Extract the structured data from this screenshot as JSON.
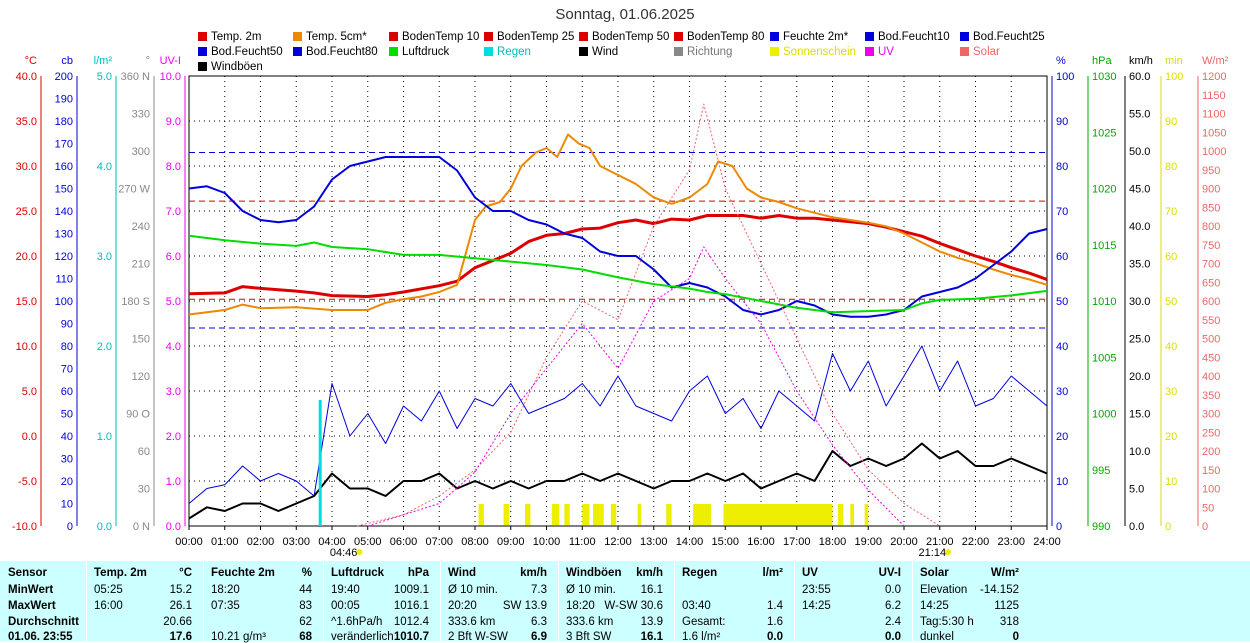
{
  "chart_data": {
    "type": "line",
    "title": "Sonntag, 01.06.2025",
    "x_ticks": [
      "00:00",
      "01:00",
      "02:00",
      "03:00",
      "04:00",
      "05:00",
      "06:00",
      "07:00",
      "08:00",
      "09:00",
      "10:00",
      "11:00",
      "12:00",
      "13:00",
      "14:00",
      "15:00",
      "16:00",
      "17:00",
      "18:00",
      "19:00",
      "20:00",
      "21:00",
      "22:00",
      "23:00",
      "24:00"
    ],
    "sunrise": "04:46",
    "sunset": "21:14",
    "legend": [
      {
        "name": "Temp. 2m",
        "color": "#dd0000"
      },
      {
        "name": "Temp. 5cm*",
        "color": "#ee8800"
      },
      {
        "name": "BodenTemp 10",
        "color": "#dd0000"
      },
      {
        "name": "BodenTemp 25",
        "color": "#dd0000"
      },
      {
        "name": "BodenTemp 50",
        "color": "#dd0000"
      },
      {
        "name": "BodenTemp 80",
        "color": "#dd0000"
      },
      {
        "name": "Feuchte 2m*",
        "color": "#0000dd"
      },
      {
        "name": "Bod.Feucht10",
        "color": "#0000dd"
      },
      {
        "name": "Bod.Feucht25",
        "color": "#0000dd"
      },
      {
        "name": "Bod.Feucht50",
        "color": "#0000dd"
      },
      {
        "name": "Bod.Feucht80",
        "color": "#0000dd"
      },
      {
        "name": "Luftdruck",
        "color": "#00dd00"
      },
      {
        "name": "Regen",
        "color": "#00dddd"
      },
      {
        "name": "Wind",
        "color": "#000000"
      },
      {
        "name": "Richtung",
        "color": "#888888"
      },
      {
        "name": "Sonnenschein",
        "color": "#eeee00"
      },
      {
        "name": "UV",
        "color": "#ee00ee"
      },
      {
        "name": "Solar",
        "color": "#ee6666"
      },
      {
        "name": "Windböen",
        "color": "#000000"
      }
    ],
    "left_axes": [
      {
        "unit": "°C",
        "color": "#dd0000",
        "ticks": [
          "40.0",
          "35.0",
          "30.0",
          "25.0",
          "20.0",
          "15.0",
          "10.0",
          "5.0",
          "0.0",
          "-5.0",
          "-10.0"
        ]
      },
      {
        "unit": "cb",
        "color": "#0000dd",
        "ticks": [
          "200",
          "190",
          "180",
          "170",
          "160",
          "150",
          "140",
          "130",
          "120",
          "110",
          "100",
          "90",
          "80",
          "70",
          "60",
          "50",
          "40",
          "30",
          "20",
          "10",
          "0"
        ]
      },
      {
        "unit": "l/m²",
        "color": "#00bbbb",
        "ticks": [
          "5.0",
          "4.0",
          "3.0",
          "2.0",
          "1.0",
          "0.0"
        ]
      },
      {
        "unit": "°",
        "color": "#888888",
        "ticks": [
          "360 N",
          "330",
          "300",
          "270 W",
          "240",
          "210",
          "180 S",
          "150",
          "120",
          "90 O",
          "60",
          "30",
          "0 N"
        ]
      },
      {
        "unit": "UV-I",
        "color": "#ee00ee",
        "ticks": [
          "10.0",
          "9.0",
          "8.0",
          "7.0",
          "6.0",
          "5.0",
          "4.0",
          "3.0",
          "2.0",
          "1.0",
          "0.0"
        ]
      }
    ],
    "right_axes": [
      {
        "unit": "%",
        "color": "#0000dd",
        "ticks": [
          "100",
          "90",
          "80",
          "70",
          "60",
          "50",
          "40",
          "30",
          "20",
          "10",
          "0"
        ]
      },
      {
        "unit": "hPa",
        "color": "#00aa00",
        "ticks": [
          "1030",
          "1025",
          "1020",
          "1015",
          "1010",
          "1005",
          "1000",
          "995",
          "990"
        ]
      },
      {
        "unit": "km/h",
        "color": "#000000",
        "ticks": [
          "60.0",
          "55.0",
          "50.0",
          "45.0",
          "40.0",
          "35.0",
          "30.0",
          "25.0",
          "20.0",
          "15.0",
          "10.0",
          "5.0",
          "0.0"
        ]
      },
      {
        "unit": "min",
        "color": "#dddd00",
        "ticks": [
          "100",
          "90",
          "80",
          "70",
          "60",
          "50",
          "40",
          "30",
          "20",
          "10",
          "0"
        ]
      },
      {
        "unit": "W/m²",
        "color": "#ee6666",
        "ticks": [
          "1200",
          "1150",
          "1100",
          "1050",
          "1000",
          "950",
          "900",
          "850",
          "800",
          "750",
          "700",
          "650",
          "600",
          "550",
          "500",
          "450",
          "400",
          "350",
          "300",
          "250",
          "200",
          "150",
          "100",
          "50",
          "0"
        ]
      }
    ],
    "series": [
      {
        "name": "Temp. 2m",
        "color": "#dd0000",
        "axis": "°C",
        "x": [
          0,
          1,
          1.5,
          2,
          3,
          3.5,
          4,
          5,
          5.5,
          6,
          7,
          7.5,
          8,
          8.5,
          9,
          9.5,
          10,
          10.5,
          11,
          11.5,
          12,
          12.5,
          13,
          13.5,
          14,
          14.5,
          15,
          15.5,
          16,
          16.5,
          17,
          17.5,
          18,
          18.5,
          19,
          19.5,
          20,
          20.5,
          21,
          21.5,
          22,
          22.5,
          23,
          23.5,
          24
        ],
        "y": [
          15.8,
          15.9,
          16.6,
          16.4,
          16.1,
          15.9,
          15.6,
          15.5,
          15.7,
          16.0,
          16.7,
          17.2,
          18.7,
          19.5,
          20.3,
          21.6,
          22.3,
          22.5,
          23.0,
          23.1,
          23.7,
          24.0,
          23.6,
          24.1,
          24.0,
          24.5,
          24.5,
          24.5,
          24.2,
          24.5,
          24.2,
          24.2,
          24.0,
          23.8,
          23.6,
          23.2,
          22.7,
          22.2,
          21.4,
          20.7,
          20.0,
          19.4,
          18.7,
          18.1,
          17.4
        ]
      },
      {
        "name": "Temp. 5cm*",
        "color": "#ee8800",
        "axis": "°C",
        "x": [
          0,
          1,
          1.5,
          2,
          3,
          4,
          5,
          5.5,
          6,
          6.5,
          7,
          7.5,
          8,
          8.3,
          8.7,
          9,
          9.3,
          9.7,
          10,
          10.3,
          10.6,
          10.9,
          11.2,
          11.5,
          12,
          12.5,
          13,
          13.5,
          14,
          14.5,
          14.8,
          15.2,
          15.6,
          16,
          16.5,
          17,
          17.5,
          18,
          18.5,
          19,
          19.5,
          20,
          20.5,
          21,
          21.5,
          22,
          22.5,
          23,
          23.5,
          24
        ],
        "y": [
          13.5,
          14.0,
          14.6,
          14.2,
          14.3,
          14.0,
          14.0,
          14.8,
          15.2,
          15.5,
          16.0,
          16.8,
          24.0,
          25.5,
          26.0,
          27.5,
          30.0,
          31.5,
          32.0,
          31.0,
          33.5,
          32.5,
          32.0,
          30.0,
          29.0,
          28.0,
          26.5,
          25.8,
          26.5,
          28.0,
          30.5,
          30.0,
          27.5,
          26.5,
          26.0,
          25.3,
          24.8,
          24.3,
          24.0,
          23.7,
          23.3,
          22.5,
          21.5,
          20.5,
          19.8,
          19.2,
          18.5,
          17.9,
          17.4,
          16.8
        ]
      },
      {
        "name": "Feuchte 2m*",
        "color": "#0000dd",
        "axis": "%",
        "x": [
          0,
          0.5,
          1,
          1.5,
          2,
          2.5,
          3,
          3.5,
          4,
          4.5,
          5,
          5.5,
          6,
          7,
          7.5,
          8,
          8.5,
          9,
          9.5,
          10,
          10.5,
          11,
          11.5,
          12,
          12.5,
          13,
          13.5,
          14,
          14.5,
          15,
          15.5,
          16,
          16.5,
          17,
          17.5,
          18,
          18.5,
          19,
          19.5,
          20,
          20.5,
          21,
          21.5,
          22,
          22.5,
          23,
          23.5,
          24
        ],
        "y": [
          75,
          75.5,
          74,
          70,
          68,
          67.5,
          68,
          71,
          77,
          80,
          81,
          82,
          82,
          82,
          79,
          73,
          70,
          70,
          68,
          67,
          65,
          64,
          61,
          60,
          60,
          57,
          53,
          54,
          53,
          51,
          48,
          47,
          48,
          50,
          49,
          47,
          46.5,
          46.5,
          47,
          48,
          51,
          52,
          53,
          55,
          58,
          61,
          65,
          66
        ]
      },
      {
        "name": "Luftdruck",
        "color": "#00dd00",
        "axis": "hPa",
        "x": [
          0,
          1,
          2,
          3,
          3.5,
          4,
          5,
          6,
          7,
          8,
          9,
          10,
          11,
          12,
          13,
          14,
          14.5,
          15,
          16,
          17,
          18,
          19,
          20,
          20.5,
          21,
          22,
          23,
          24
        ],
        "y": [
          1015.8,
          1015.4,
          1015.1,
          1014.9,
          1015.2,
          1014.8,
          1014.6,
          1014.1,
          1014.1,
          1013.8,
          1013.5,
          1013.2,
          1012.8,
          1012.1,
          1011.5,
          1011.1,
          1010.8,
          1010.6,
          1010.0,
          1009.4,
          1009.0,
          1009.1,
          1009.2,
          1009.8,
          1010.1,
          1010.2,
          1010.5,
          1010.9
        ]
      },
      {
        "name": "Windböen",
        "color": "#0000dd",
        "axis": "km/h",
        "x": [
          0,
          0.5,
          1,
          1.5,
          2,
          2.5,
          3,
          3.5,
          4,
          4.5,
          5,
          5.5,
          6,
          6.5,
          7,
          7.5,
          8,
          8.5,
          9,
          9.5,
          10,
          10.5,
          11,
          11.5,
          12,
          12.5,
          13,
          13.5,
          14,
          14.5,
          15,
          15.5,
          16,
          16.5,
          17,
          17.5,
          18,
          18.5,
          19,
          19.5,
          20,
          20.5,
          21,
          21.5,
          22,
          22.5,
          23,
          23.5,
          24
        ],
        "y": [
          3,
          5,
          5.5,
          8,
          6,
          7,
          6,
          4,
          19,
          12,
          15,
          11,
          16,
          14,
          18,
          13,
          17,
          16,
          19,
          15,
          16,
          17,
          19,
          16,
          20,
          16,
          15,
          14,
          18,
          20,
          15,
          17,
          13,
          18,
          16,
          14,
          23,
          18,
          22,
          16,
          20,
          24,
          18,
          22,
          16,
          17,
          20,
          18,
          16
        ]
      },
      {
        "name": "Wind",
        "color": "#000000",
        "axis": "km/h",
        "x": [
          0,
          0.5,
          1,
          1.5,
          2,
          2.5,
          3,
          3.5,
          4,
          4.5,
          5,
          5.5,
          6,
          6.5,
          7,
          7.5,
          8,
          8.5,
          9,
          9.5,
          10,
          10.5,
          11,
          11.5,
          12,
          12.5,
          13,
          13.5,
          14,
          14.5,
          15,
          15.5,
          16,
          16.5,
          17,
          17.5,
          18,
          18.5,
          19,
          19.5,
          20,
          20.5,
          21,
          21.5,
          22,
          22.5,
          23,
          23.5,
          24
        ],
        "y": [
          1,
          2.5,
          2,
          3,
          3,
          2,
          3,
          4,
          7,
          5,
          5,
          4,
          6,
          6,
          7,
          5,
          6,
          5,
          6,
          5,
          6,
          6,
          7,
          6,
          7,
          6,
          5,
          6,
          6,
          7,
          6,
          7,
          5,
          6,
          7,
          6,
          10,
          8,
          9,
          8,
          9,
          11,
          9,
          10,
          8,
          8,
          9,
          8,
          7
        ]
      },
      {
        "name": "Regen",
        "color": "#00dddd",
        "axis": "l/m²",
        "x": [
          3.67
        ],
        "y": [
          1.4
        ]
      },
      {
        "name": "Sonnenschein",
        "color": "#eeee00",
        "axis": "min",
        "intervals": [
          [
            8.1,
            8.25
          ],
          [
            8.8,
            8.95
          ],
          [
            9.4,
            9.55
          ],
          [
            10.15,
            10.35
          ],
          [
            10.5,
            10.65
          ],
          [
            11.0,
            11.2
          ],
          [
            11.3,
            11.6
          ],
          [
            11.8,
            11.95
          ],
          [
            12.55,
            12.65
          ],
          [
            13.35,
            13.5
          ],
          [
            14.1,
            14.6
          ],
          [
            14.95,
            18.0
          ],
          [
            18.15,
            18.3
          ],
          [
            18.5,
            18.6
          ],
          [
            18.9,
            19.0
          ]
        ]
      },
      {
        "name": "Solar",
        "color": "#ee6666",
        "axis": "W/m²",
        "x": [
          4.7,
          6,
          7,
          8,
          9,
          10,
          11,
          12,
          13,
          14,
          14.4,
          15,
          16,
          17,
          18,
          19,
          20,
          21
        ],
        "y": [
          0,
          30,
          80,
          150,
          250,
          450,
          600,
          550,
          800,
          950,
          1125,
          900,
          700,
          500,
          300,
          150,
          60,
          0
        ]
      },
      {
        "name": "UV",
        "color": "#ee00ee",
        "axis": "UV-I",
        "x": [
          5,
          7,
          8,
          9,
          10,
          11,
          12,
          13,
          14,
          14.4,
          15,
          16,
          17,
          18,
          19,
          20
        ],
        "y": [
          0,
          0.5,
          1.2,
          2.5,
          3.5,
          4.5,
          3.5,
          5.0,
          5.5,
          6.2,
          5.5,
          4.5,
          3.0,
          1.8,
          0.8,
          0
        ]
      }
    ],
    "reference_lines": [
      {
        "axis": "°C",
        "y": 15.2,
        "color": "#dd0000"
      },
      {
        "axis": "°C",
        "y": 26.1,
        "color": "#dd0000"
      },
      {
        "axis": "%",
        "y": 44,
        "color": "#0000dd"
      },
      {
        "axis": "%",
        "y": 83,
        "color": "#0000dd"
      }
    ]
  },
  "stats": {
    "rows": [
      "Sensor",
      "MinWert",
      "MaxWert",
      "Durchschnitt",
      "01.06. 23:55"
    ],
    "columns": [
      {
        "header": "Temp. 2m",
        "unit": "°C",
        "cells": [
          [
            "05:25",
            "15.2"
          ],
          [
            "16:00",
            "26.1"
          ],
          [
            "",
            "20.66"
          ],
          [
            "",
            "17.6"
          ]
        ]
      },
      {
        "header": "Feuchte 2m",
        "unit": "%",
        "cells": [
          [
            "18:20",
            "44"
          ],
          [
            "07:35",
            "83"
          ],
          [
            "",
            "62"
          ],
          [
            "10.21 g/m³",
            "68"
          ]
        ]
      },
      {
        "header": "Luftdruck",
        "unit": "hPa",
        "cells": [
          [
            "19:40",
            "1009.1"
          ],
          [
            "00:05",
            "1016.1"
          ],
          [
            "^1.6hPa/h",
            "1012.4"
          ],
          [
            "veränderlich",
            "1010.7"
          ]
        ]
      },
      {
        "header": "Wind",
        "unit": "km/h",
        "cells": [
          [
            "Ø 10 min.",
            "7.3"
          ],
          [
            "20:20",
            "SW 13.9"
          ],
          [
            "333.6 km",
            "6.3"
          ],
          [
            "2 Bft W-SW",
            "6.9"
          ]
        ]
      },
      {
        "header": "Windböen",
        "unit": "km/h",
        "cells": [
          [
            "Ø 10 min.",
            "16.1"
          ],
          [
            "18:20",
            "W-SW 30.6"
          ],
          [
            "333.6 km",
            "13.9"
          ],
          [
            "3 Bft SW",
            "16.1"
          ]
        ]
      },
      {
        "header": "Regen",
        "unit": "l/m²",
        "cells": [
          [
            "",
            ""
          ],
          [
            "03:40",
            "1.4"
          ],
          [
            "Gesamt:",
            "1.6"
          ],
          [
            "1.6 l/m²",
            "0.0"
          ]
        ]
      },
      {
        "header": "UV",
        "unit": "UV-I",
        "cells": [
          [
            "23:55",
            "0.0"
          ],
          [
            "14:25",
            "6.2"
          ],
          [
            "",
            "2.4"
          ],
          [
            "",
            "0.0"
          ]
        ]
      },
      {
        "header": "Solar",
        "unit": "W/m²",
        "cells": [
          [
            "Elevation",
            "-14.152"
          ],
          [
            "14:25",
            "1125"
          ],
          [
            "Tag:5:30 h",
            "318"
          ],
          [
            "dunkel",
            "0"
          ]
        ]
      }
    ]
  }
}
